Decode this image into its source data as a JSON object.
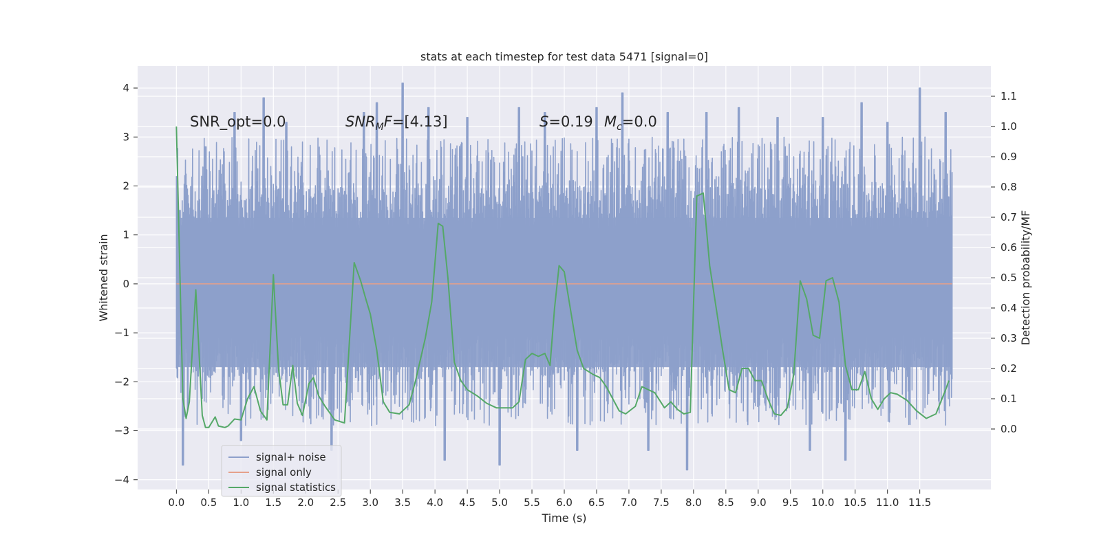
{
  "chart_data": {
    "type": "line",
    "title": "stats at each timestep for test data 5471 [signal=0]",
    "xlabel": "Time (s)",
    "ylabel": "Whitened strain",
    "ylabel_right": "Detection probability/MF",
    "xlim": [
      -0.6,
      12.6
    ],
    "ylim": [
      -4.2,
      4.45
    ],
    "ylim_right": [
      -0.2,
      1.2
    ],
    "x_ticks": [
      0.0,
      0.5,
      1.0,
      1.5,
      2.0,
      2.5,
      3.0,
      3.5,
      4.0,
      4.5,
      5.0,
      5.5,
      6.0,
      6.5,
      7.0,
      7.5,
      8.0,
      8.5,
      9.0,
      9.5,
      10.0,
      10.5,
      11.0,
      11.5
    ],
    "x_tick_labels": [
      "0.0",
      "0.5",
      "1.0",
      "1.5",
      "2.0",
      "2.5",
      "3.0",
      "3.5",
      "4.0",
      "4.5",
      "5.0",
      "5.5",
      "6.0",
      "6.5",
      "7.0",
      "7.5",
      "8.0",
      "8.5",
      "9.0",
      "9.5",
      "10.0",
      "10.5",
      "11.0",
      "11.5"
    ],
    "y_ticks": [
      -4,
      -3,
      -2,
      -1,
      0,
      1,
      2,
      3,
      4
    ],
    "y_tick_labels": [
      "−4",
      "−3",
      "−2",
      "−1",
      "0",
      "1",
      "2",
      "3",
      "4"
    ],
    "y_ticks_right": [
      0.0,
      0.1,
      0.2,
      0.3,
      0.4,
      0.5,
      0.6,
      0.7,
      0.8,
      0.9,
      1.0,
      1.1
    ],
    "y_tick_labels_right": [
      "0.0",
      "0.1",
      "0.2",
      "0.3",
      "0.4",
      "0.5",
      "0.6",
      "0.7",
      "0.8",
      "0.9",
      "1.0",
      "1.1"
    ],
    "grid": true,
    "legend": {
      "placement": "lower-left"
    },
    "annotations": [
      "SNR_opt=0.0",
      "SNR_MF=[4.13]",
      "S=0.19",
      "M_c=0.0"
    ],
    "series": [
      {
        "name": "signal+ noise",
        "color": "#8da0cb",
        "style": "dense noise band, roughly -1.9 to 2.0 with spikes from about -3.8 to 4.1",
        "x_range": [
          0.0,
          12.0
        ],
        "band": [
          -1.9,
          2.0
        ],
        "peaks": [
          [
            0.05,
            1.5
          ],
          [
            0.1,
            -3.7
          ],
          [
            0.45,
            2.8
          ],
          [
            0.9,
            3.5
          ],
          [
            1.0,
            -3.2
          ],
          [
            1.35,
            3.8
          ],
          [
            1.7,
            3.3
          ],
          [
            2.4,
            -3.4
          ],
          [
            2.9,
            3.5
          ],
          [
            3.1,
            3.7
          ],
          [
            3.5,
            4.1
          ],
          [
            3.9,
            3.6
          ],
          [
            4.15,
            -3.6
          ],
          [
            4.5,
            3.4
          ],
          [
            5.0,
            -3.7
          ],
          [
            5.3,
            3.6
          ],
          [
            5.7,
            3.5
          ],
          [
            6.2,
            -3.4
          ],
          [
            6.5,
            3.6
          ],
          [
            6.9,
            3.9
          ],
          [
            7.3,
            -3.4
          ],
          [
            7.6,
            3.5
          ],
          [
            7.9,
            -3.8
          ],
          [
            8.2,
            3.5
          ],
          [
            8.7,
            3.6
          ],
          [
            9.3,
            3.4
          ],
          [
            9.8,
            -3.4
          ],
          [
            10.0,
            3.4
          ],
          [
            10.35,
            -3.6
          ],
          [
            10.6,
            3.7
          ],
          [
            11.0,
            3.3
          ],
          [
            11.5,
            4.0
          ],
          [
            11.9,
            3.5
          ]
        ]
      },
      {
        "name": "signal only",
        "color": "#e5a08a",
        "x": [
          0.0,
          12.0
        ],
        "y": [
          0.0,
          0.0
        ]
      },
      {
        "name": "signal statistics",
        "color": "#55a868",
        "axis": "right",
        "x": [
          0.0,
          0.1,
          0.15,
          0.2,
          0.3,
          0.4,
          0.45,
          0.5,
          0.6,
          0.65,
          0.75,
          0.8,
          0.9,
          1.0,
          1.1,
          1.2,
          1.3,
          1.4,
          1.5,
          1.58,
          1.65,
          1.72,
          1.8,
          1.87,
          1.95,
          2.05,
          2.12,
          2.2,
          2.3,
          2.45,
          2.6,
          2.75,
          2.85,
          2.93,
          3.0,
          3.1,
          3.2,
          3.3,
          3.45,
          3.6,
          3.7,
          3.85,
          3.95,
          4.05,
          4.12,
          4.2,
          4.3,
          4.4,
          4.5,
          4.65,
          4.8,
          4.95,
          5.1,
          5.2,
          5.3,
          5.4,
          5.5,
          5.6,
          5.7,
          5.78,
          5.85,
          5.92,
          6.0,
          6.1,
          6.2,
          6.3,
          6.45,
          6.55,
          6.65,
          6.75,
          6.85,
          6.95,
          7.1,
          7.2,
          7.4,
          7.55,
          7.65,
          7.75,
          7.85,
          7.95,
          8.05,
          8.15,
          8.25,
          8.35,
          8.45,
          8.55,
          8.65,
          8.75,
          8.85,
          8.95,
          9.05,
          9.15,
          9.25,
          9.35,
          9.45,
          9.55,
          9.65,
          9.75,
          9.85,
          9.95,
          10.05,
          10.15,
          10.25,
          10.35,
          10.45,
          10.55,
          10.65,
          10.75,
          10.85,
          10.95,
          11.05,
          11.15,
          11.3,
          11.45,
          11.6,
          11.75,
          11.9,
          11.95
        ],
        "y": [
          1.0,
          0.1,
          0.035,
          0.09,
          0.46,
          0.045,
          0.005,
          0.005,
          0.04,
          0.01,
          0.005,
          0.01,
          0.033,
          0.03,
          0.1,
          0.14,
          0.06,
          0.03,
          0.51,
          0.2,
          0.08,
          0.08,
          0.21,
          0.085,
          0.045,
          0.15,
          0.17,
          0.11,
          0.075,
          0.03,
          0.02,
          0.55,
          0.49,
          0.43,
          0.38,
          0.26,
          0.09,
          0.055,
          0.05,
          0.08,
          0.16,
          0.3,
          0.42,
          0.68,
          0.67,
          0.5,
          0.22,
          0.16,
          0.13,
          0.11,
          0.085,
          0.07,
          0.07,
          0.07,
          0.09,
          0.23,
          0.25,
          0.24,
          0.25,
          0.21,
          0.4,
          0.54,
          0.52,
          0.39,
          0.26,
          0.2,
          0.18,
          0.17,
          0.14,
          0.1,
          0.06,
          0.05,
          0.075,
          0.14,
          0.12,
          0.07,
          0.09,
          0.065,
          0.05,
          0.055,
          0.77,
          0.78,
          0.54,
          0.4,
          0.26,
          0.13,
          0.12,
          0.2,
          0.2,
          0.16,
          0.16,
          0.1,
          0.05,
          0.045,
          0.07,
          0.18,
          0.49,
          0.43,
          0.31,
          0.3,
          0.49,
          0.5,
          0.42,
          0.21,
          0.13,
          0.13,
          0.19,
          0.1,
          0.065,
          0.1,
          0.12,
          0.115,
          0.095,
          0.06,
          0.035,
          0.05,
          0.13,
          0.16
        ]
      }
    ]
  }
}
